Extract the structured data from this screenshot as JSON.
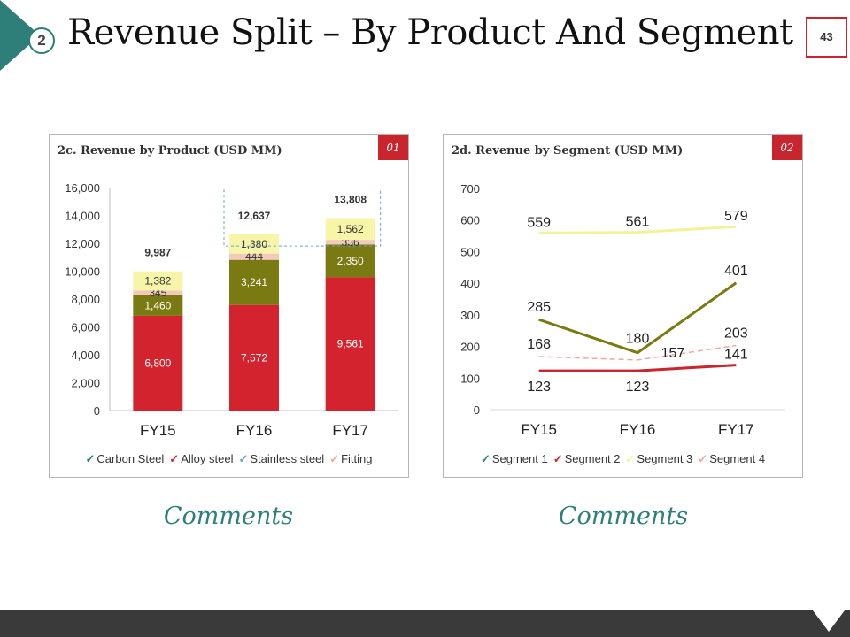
{
  "slide": {
    "section_number": "2",
    "title": "Revenue Split – By Product And Segment",
    "page_number": "43",
    "accent_color": "#2e7f7a",
    "brand_red": "#c9252e"
  },
  "panels": {
    "left": {
      "title": "2c. Revenue by Product (USD MM)",
      "badge": "01",
      "comments": "Comments"
    },
    "right": {
      "title": "2d. Revenue by Segment (USD MM)",
      "badge": "02",
      "comments": "Comments"
    }
  },
  "chart_data": [
    {
      "type": "bar",
      "stacked": true,
      "title": "2c. Revenue by Product (USD MM)",
      "categories": [
        "FY15",
        "FY16",
        "FY17"
      ],
      "ylim": [
        0,
        16000
      ],
      "yticks": [
        0,
        2000,
        4000,
        6000,
        8000,
        10000,
        12000,
        14000,
        16000
      ],
      "ytick_labels": [
        "0",
        "2,000",
        "4,000",
        "6,000",
        "8,000",
        "10,000",
        "12,000",
        "14,000",
        "16,000"
      ],
      "series": [
        {
          "name": "Carbon Steel",
          "color": "#d2232e",
          "label_color": "#ffffff",
          "values": [
            6800,
            7572,
            9561
          ],
          "labels": [
            "6,800",
            "7,572",
            "9,561"
          ]
        },
        {
          "name": "Alloy steel",
          "color": "#7a7a12",
          "label_color": "#ffffff",
          "values": [
            1460,
            3241,
            2350
          ],
          "labels": [
            "1,460",
            "3,241",
            "2,350"
          ]
        },
        {
          "name": "Stainless steel",
          "color": "#f2c9bb",
          "label_color": "#333333",
          "values": [
            345,
            444,
            336
          ],
          "labels": [
            "345",
            "444",
            "336"
          ]
        },
        {
          "name": "Fitting",
          "color": "#f6f5a8",
          "label_color": "#333333",
          "values": [
            1382,
            1380,
            1562
          ],
          "labels": [
            "1,382",
            "1,380",
            "1,562"
          ]
        }
      ],
      "totals": [
        9987,
        12637,
        13808
      ],
      "total_labels": [
        "9,987",
        "12,637",
        "13,808"
      ],
      "legend_position": "bottom",
      "legend_marker_colors": [
        "#2e7f7a",
        "#d2232e",
        "#5fa8c8",
        "#f2a99a"
      ],
      "grid": false
    },
    {
      "type": "line",
      "title": "2d. Revenue by Segment (USD MM)",
      "categories": [
        "FY15",
        "FY16",
        "FY17"
      ],
      "ylim": [
        0,
        700
      ],
      "yticks": [
        0,
        100,
        200,
        300,
        400,
        500,
        600,
        700
      ],
      "ytick_labels": [
        "0",
        "100",
        "200",
        "300",
        "400",
        "500",
        "600",
        "700"
      ],
      "series": [
        {
          "name": "Segment 1",
          "color": "#c9252e",
          "dash": false,
          "width": 3,
          "values": [
            123,
            123,
            141
          ],
          "labels": [
            "123",
            "123",
            "141"
          ]
        },
        {
          "name": "Segment 2",
          "color": "#7a7a12",
          "dash": false,
          "width": 3,
          "values": [
            285,
            180,
            401
          ],
          "labels": [
            "285",
            "180",
            "401"
          ]
        },
        {
          "name": "Segment 3",
          "color": "#f2f29a",
          "dash": false,
          "width": 3,
          "values": [
            559,
            561,
            579
          ],
          "labels": [
            "559",
            "561",
            "579"
          ]
        },
        {
          "name": "Segment 4",
          "color": "#f0a8a0",
          "dash": true,
          "width": 1.5,
          "values": [
            168,
            157,
            203
          ],
          "labels": [
            "168",
            "157",
            "203"
          ]
        }
      ],
      "legend_position": "bottom",
      "legend_marker_colors": [
        "#2e7f7a",
        "#d2232e",
        "#f2f29a",
        "#f0a8a0"
      ],
      "grid": false
    }
  ]
}
